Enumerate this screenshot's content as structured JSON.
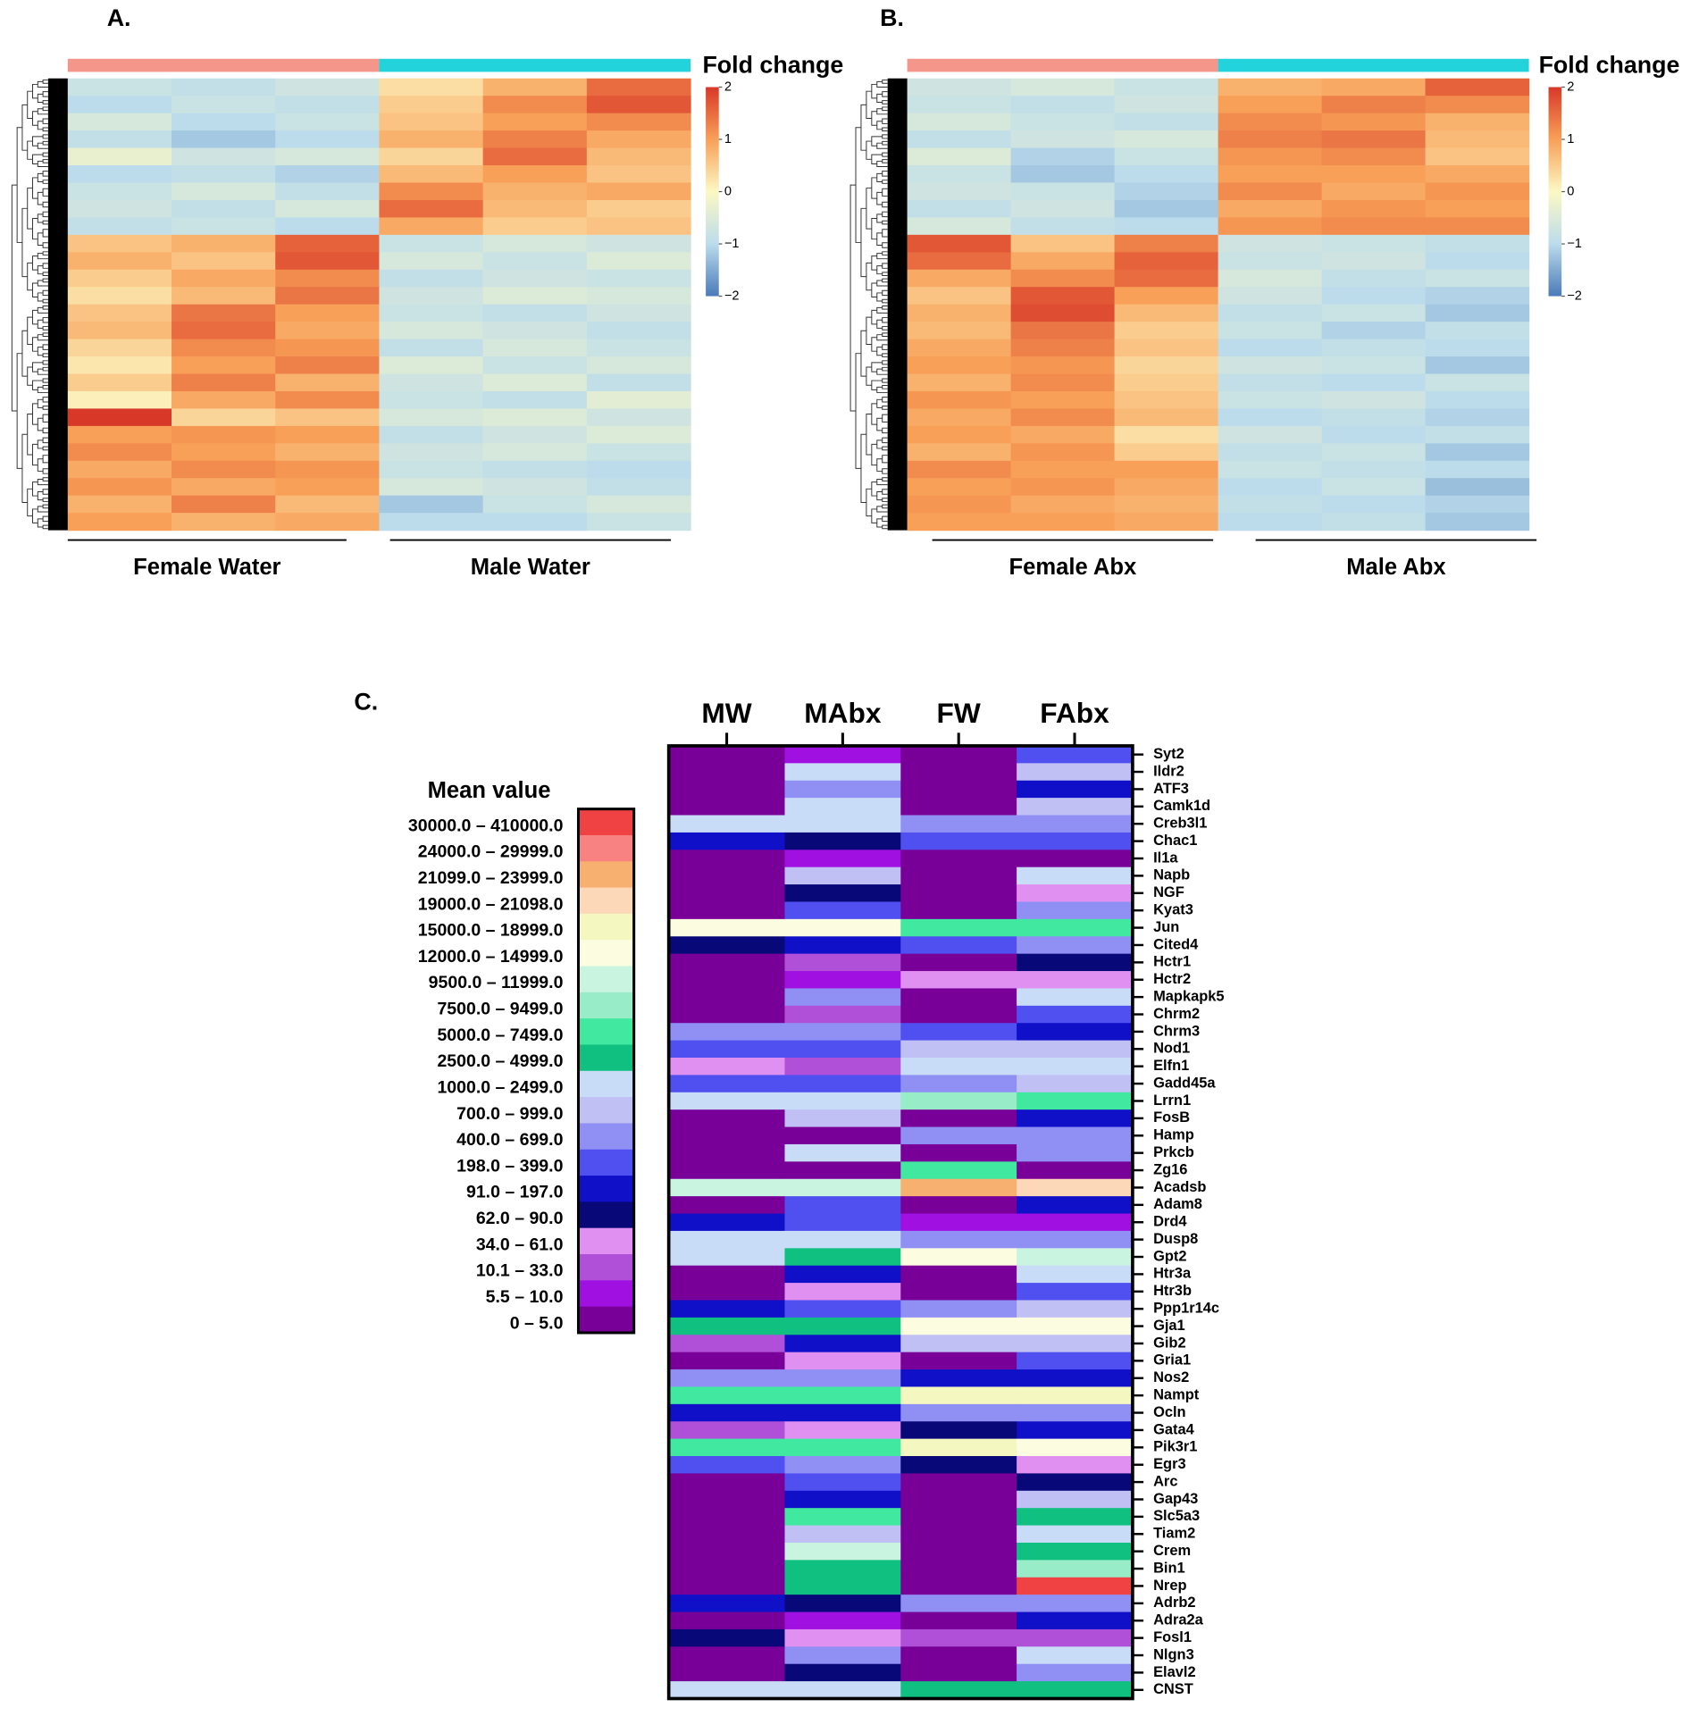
{
  "chart_data": [
    {
      "type": "heatmap",
      "label": "A.",
      "colorbar_title": "Fold change",
      "groups": [
        {
          "name": "Female Water",
          "color": "#f4968a"
        },
        {
          "name": "Male Water",
          "color": "#22d3dc"
        }
      ],
      "colorscale": [
        "#4a7ab8",
        "#bcdcec",
        "#fcf8c4",
        "#f8a058",
        "#d83828"
      ],
      "zlim": [
        -2,
        2
      ],
      "zticks": [
        2,
        1,
        0,
        {
          "value": -1,
          "label": "−1"
        },
        {
          "value": -2,
          "label": "−2"
        }
      ],
      "values": [
        [
          -0.8,
          -0.9,
          -0.7,
          0.3,
          0.8,
          1.5
        ],
        [
          -1,
          -0.8,
          -0.9,
          0.5,
          1.2,
          1.7
        ],
        [
          -0.6,
          -1,
          -0.8,
          0.6,
          1.0,
          1.2
        ],
        [
          -0.9,
          -1.2,
          -1,
          0.8,
          1.3,
          0.9
        ],
        [
          -0.3,
          -0.7,
          -0.6,
          0.4,
          1.5,
          0.7
        ],
        [
          -1,
          -0.9,
          -1.1,
          0.7,
          1.0,
          0.6
        ],
        [
          -0.8,
          -0.6,
          -0.9,
          1.2,
          0.8,
          0.9
        ],
        [
          -0.7,
          -0.9,
          -0.6,
          1.5,
          0.7,
          0.5
        ],
        [
          -0.9,
          -0.8,
          -1,
          0.9,
          0.5,
          0.6
        ],
        [
          0.6,
          0.8,
          1.6,
          -0.8,
          -0.6,
          -0.7
        ],
        [
          0.8,
          0.6,
          1.7,
          -0.6,
          -0.8,
          -0.5
        ],
        [
          0.5,
          0.9,
          1.2,
          -0.9,
          -0.7,
          -0.8
        ],
        [
          0.3,
          0.7,
          1.4,
          -0.7,
          -0.5,
          -0.6
        ],
        [
          0.6,
          1.4,
          1.0,
          -0.8,
          -0.9,
          -0.7
        ],
        [
          0.7,
          1.5,
          0.9,
          -0.6,
          -0.7,
          -0.9
        ],
        [
          0.4,
          1.2,
          1.1,
          -0.9,
          -0.6,
          -0.8
        ],
        [
          0.2,
          1.0,
          1.3,
          -0.5,
          -0.8,
          -0.6
        ],
        [
          0.5,
          1.3,
          0.8,
          -0.7,
          -0.5,
          -0.9
        ],
        [
          0.1,
          0.9,
          1.2,
          -0.8,
          -0.9,
          -0.4
        ],
        [
          2.0,
          0.4,
          0.6,
          -0.6,
          -0.5,
          -0.7
        ],
        [
          1.0,
          1.1,
          1.0,
          -0.9,
          -0.7,
          -0.5
        ],
        [
          1.2,
          1.0,
          0.8,
          -0.7,
          -0.6,
          -0.8
        ],
        [
          0.9,
          1.2,
          1.1,
          -0.8,
          -0.9,
          -1.0
        ],
        [
          1.1,
          0.9,
          1.0,
          -0.6,
          -0.7,
          -0.9
        ],
        [
          0.8,
          1.3,
          0.7,
          -1.2,
          -0.8,
          -0.6
        ],
        [
          1.0,
          0.8,
          0.9,
          -1,
          -1,
          -0.8
        ]
      ]
    },
    {
      "type": "heatmap",
      "label": "B.",
      "colorbar_title": "Fold change",
      "groups": [
        {
          "name": "Female Abx",
          "color": "#f4968a"
        },
        {
          "name": "Male Abx",
          "color": "#22d3dc"
        }
      ],
      "colorscale": [
        "#4a7ab8",
        "#bcdcec",
        "#fcf8c4",
        "#f8a058",
        "#d83828"
      ],
      "zlim": [
        -2,
        2
      ],
      "zticks": [
        2,
        1,
        0,
        {
          "value": -1,
          "label": "−1"
        },
        {
          "value": -2,
          "label": "−2"
        }
      ],
      "values": [
        [
          -0.7,
          -0.6,
          -0.8,
          0.8,
          0.9,
          1.6
        ],
        [
          -0.8,
          -0.9,
          -0.7,
          1.0,
          1.3,
          1.2
        ],
        [
          -0.6,
          -0.8,
          -0.9,
          1.2,
          1.1,
          0.8
        ],
        [
          -0.9,
          -0.7,
          -0.6,
          1.3,
          1.4,
          0.7
        ],
        [
          -0.5,
          -1.1,
          -0.8,
          1.1,
          1.2,
          0.6
        ],
        [
          -0.8,
          -1.2,
          -1.0,
          1.0,
          1.0,
          0.9
        ],
        [
          -0.7,
          -0.8,
          -1.1,
          1.2,
          0.9,
          1.1
        ],
        [
          -0.9,
          -0.7,
          -1.2,
          0.9,
          1.1,
          1.0
        ],
        [
          -0.6,
          -0.9,
          -1.0,
          1.1,
          1.2,
          1.2
        ],
        [
          1.7,
          0.6,
          1.3,
          -0.7,
          -0.8,
          -0.9
        ],
        [
          1.5,
          0.9,
          1.6,
          -0.8,
          -0.7,
          -1.0
        ],
        [
          0.9,
          1.2,
          1.5,
          -0.6,
          -0.9,
          -0.8
        ],
        [
          0.6,
          1.7,
          1.0,
          -0.7,
          -1.0,
          -1.1
        ],
        [
          0.8,
          1.8,
          0.7,
          -0.9,
          -0.8,
          -1.2
        ],
        [
          0.7,
          1.4,
          0.5,
          -0.8,
          -1.1,
          -0.9
        ],
        [
          0.9,
          1.3,
          0.6,
          -1.0,
          -0.9,
          -1.0
        ],
        [
          1.0,
          1.1,
          0.4,
          -0.7,
          -0.8,
          -1.2
        ],
        [
          0.8,
          1.2,
          0.5,
          -0.9,
          -1.0,
          -0.8
        ],
        [
          1.1,
          1.0,
          0.6,
          -0.8,
          -0.7,
          -1.0
        ],
        [
          0.9,
          1.2,
          0.7,
          -1.0,
          -0.9,
          -1.1
        ],
        [
          1.0,
          0.9,
          0.3,
          -0.7,
          -1.0,
          -0.9
        ],
        [
          0.8,
          1.1,
          0.5,
          -0.9,
          -0.8,
          -1.2
        ],
        [
          1.2,
          1.0,
          1.0,
          -0.8,
          -0.9,
          -1.0
        ],
        [
          1.0,
          1.1,
          0.9,
          -1.0,
          -0.8,
          -1.3
        ],
        [
          1.1,
          0.9,
          0.8,
          -0.9,
          -1.0,
          -1.1
        ],
        [
          1.0,
          1.0,
          0.9,
          -1.0,
          -0.9,
          -1.2
        ]
      ]
    },
    {
      "type": "binned-heatmap",
      "label": "C.",
      "legend_title": "Mean value",
      "columns": [
        "MW",
        "MAbx",
        "FW",
        "FAbx"
      ],
      "rows": [
        "Syt2",
        "Ildr2",
        "ATF3",
        "Camk1d",
        "Creb3l1",
        "Chac1",
        "Il1a",
        "Napb",
        "NGF",
        "Kyat3",
        "Jun",
        "Cited4",
        "Hctr1",
        "Hctr2",
        "Mapkapk5",
        "Chrm2",
        "Chrm3",
        "Nod1",
        "Elfn1",
        "Gadd45a",
        "Lrrn1",
        "FosB",
        "Hamp",
        "Prkcb",
        "Zg16",
        "Acadsb",
        "Adam8",
        "Drd4",
        "Dusp8",
        "Gpt2",
        "Htr3a",
        "Htr3b",
        "Ppp1r14c",
        "Gja1",
        "Gib2",
        "Gria1",
        "Nos2",
        "Nampt",
        "Ocln",
        "Gata4",
        "Pik3r1",
        "Egr3",
        "Arc",
        "Gap43",
        "Slc5a3",
        "Tiam2",
        "Crem",
        "Bin1",
        "Nrep",
        "Adrb2",
        "Adra2a",
        "Fosl1",
        "Nlgn3",
        "Elavl2",
        "CNST"
      ],
      "bins": [
        {
          "label": "30000.0 – 410000.0",
          "color": "#f04242"
        },
        {
          "label": "24000.0 – 29999.0",
          "color": "#f88282"
        },
        {
          "label": "21099.0 – 23999.0",
          "color": "#f8b070"
        },
        {
          "label": "19000.0 – 21098.0",
          "color": "#fcd8b8"
        },
        {
          "label": "15000.0 – 18999.0",
          "color": "#f4f8c0"
        },
        {
          "label": "12000.0 – 14999.0",
          "color": "#fcfce0"
        },
        {
          "label": "9500.0 – 11999.0",
          "color": "#c8f4e0"
        },
        {
          "label": "7500.0 – 9499.0",
          "color": "#98ecc8"
        },
        {
          "label": "5000.0 – 7499.0",
          "color": "#40e8a0"
        },
        {
          "label": "2500.0 – 4999.0",
          "color": "#10c080"
        },
        {
          "label": "1000.0 – 2499.0",
          "color": "#c8dcf8"
        },
        {
          "label": "700.0 – 999.0",
          "color": "#c0c0f4"
        },
        {
          "label": "400.0 – 699.0",
          "color": "#9090f4"
        },
        {
          "label": "198.0 – 399.0",
          "color": "#5050f0"
        },
        {
          "label": "91.0 – 197.0",
          "color": "#1010c8"
        },
        {
          "label": "62.0 – 90.0",
          "color": "#080878"
        },
        {
          "label": "34.0 – 61.0",
          "color": "#e090f0"
        },
        {
          "label": "10.1 – 33.0",
          "color": "#b050d8"
        },
        {
          "label": "5.5 – 10.0",
          "color": "#a010e0"
        },
        {
          "label": "0 – 5.0",
          "color": "#780098"
        }
      ],
      "values": [
        [
          19,
          18,
          19,
          13
        ],
        [
          19,
          10,
          19,
          11
        ],
        [
          19,
          12,
          19,
          14
        ],
        [
          19,
          10,
          19,
          11
        ],
        [
          10,
          10,
          12,
          12
        ],
        [
          14,
          15,
          13,
          13
        ],
        [
          19,
          18,
          19,
          19
        ],
        [
          19,
          11,
          19,
          10
        ],
        [
          19,
          15,
          19,
          16
        ],
        [
          19,
          13,
          19,
          12
        ],
        [
          5,
          5,
          8,
          8
        ],
        [
          15,
          14,
          13,
          12
        ],
        [
          19,
          17,
          19,
          15
        ],
        [
          19,
          18,
          16,
          16
        ],
        [
          19,
          12,
          19,
          10
        ],
        [
          19,
          17,
          19,
          13
        ],
        [
          12,
          12,
          13,
          14
        ],
        [
          13,
          13,
          11,
          11
        ],
        [
          16,
          17,
          10,
          10
        ],
        [
          13,
          13,
          12,
          11
        ],
        [
          10,
          10,
          7,
          8
        ],
        [
          19,
          11,
          19,
          14
        ],
        [
          19,
          19,
          12,
          12
        ],
        [
          19,
          10,
          19,
          12
        ],
        [
          19,
          19,
          8,
          19
        ],
        [
          6,
          6,
          2,
          3
        ],
        [
          19,
          13,
          19,
          14
        ],
        [
          14,
          13,
          18,
          18
        ],
        [
          10,
          10,
          12,
          12
        ],
        [
          10,
          9,
          5,
          6
        ],
        [
          19,
          14,
          19,
          10
        ],
        [
          19,
          16,
          19,
          13
        ],
        [
          14,
          13,
          12,
          11
        ],
        [
          9,
          9,
          5,
          5
        ],
        [
          17,
          14,
          11,
          11
        ],
        [
          19,
          16,
          19,
          13
        ],
        [
          12,
          12,
          14,
          14
        ],
        [
          8,
          8,
          4,
          4
        ],
        [
          14,
          14,
          12,
          12
        ],
        [
          17,
          16,
          15,
          14
        ],
        [
          8,
          8,
          4,
          5
        ],
        [
          13,
          12,
          15,
          16
        ],
        [
          19,
          13,
          19,
          15
        ],
        [
          19,
          14,
          19,
          11
        ],
        [
          19,
          8,
          19,
          9
        ],
        [
          19,
          11,
          19,
          10
        ],
        [
          19,
          6,
          19,
          9
        ],
        [
          19,
          9,
          19,
          7
        ],
        [
          19,
          9,
          19,
          0
        ],
        [
          14,
          15,
          12,
          12
        ],
        [
          19,
          18,
          19,
          14
        ],
        [
          15,
          16,
          17,
          17
        ],
        [
          19,
          12,
          19,
          10
        ],
        [
          19,
          15,
          19,
          12
        ],
        [
          10,
          10,
          9,
          9
        ]
      ]
    }
  ]
}
